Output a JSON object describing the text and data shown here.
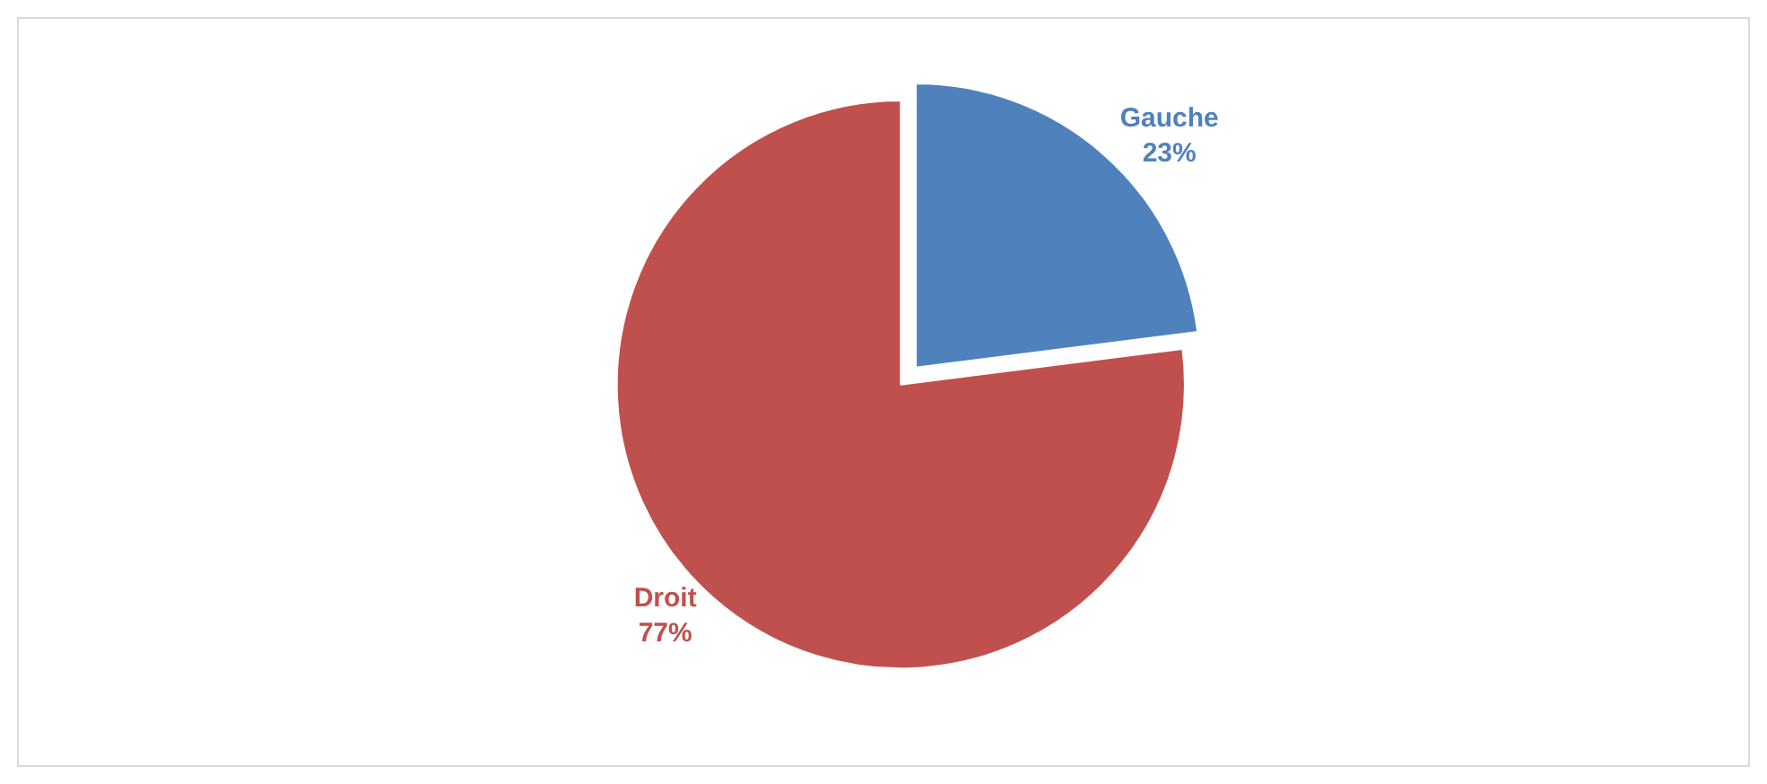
{
  "chart_data": {
    "type": "pie",
    "categories": [
      "Gauche",
      "Droit"
    ],
    "values": [
      23,
      77
    ],
    "value_labels": [
      "23%",
      "77%"
    ],
    "colors": [
      "#4f81bd",
      "#c0504d"
    ],
    "legend": false
  }
}
